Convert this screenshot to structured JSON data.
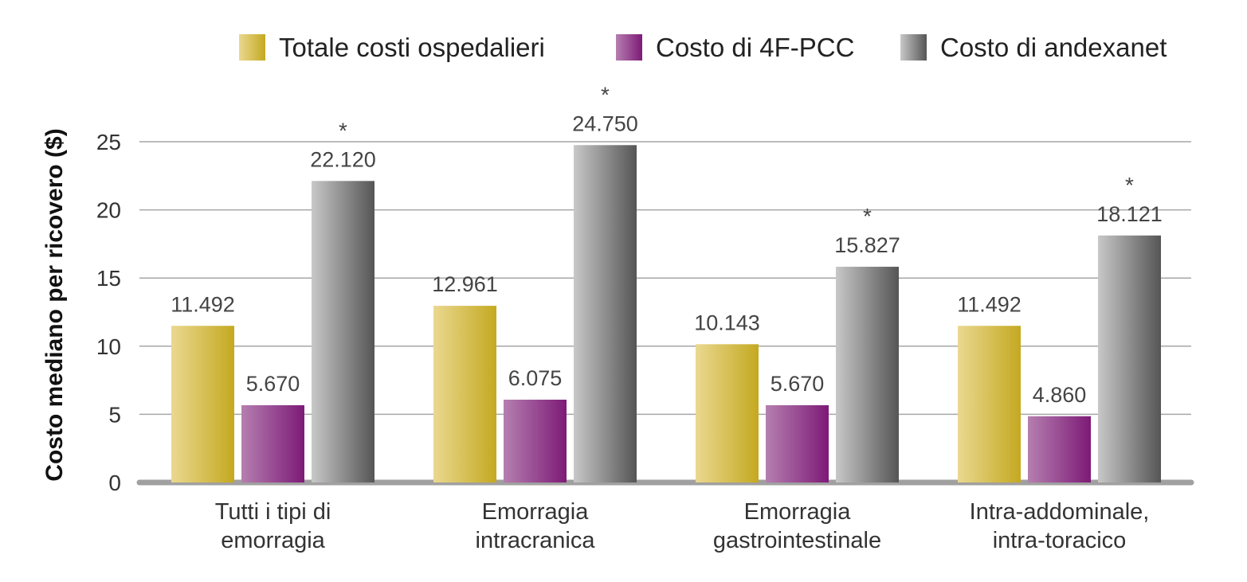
{
  "chart_data": {
    "type": "bar",
    "ylabel": "Costo mediano per ricovero ($)",
    "ylim": [
      0,
      25
    ],
    "yticks": [
      0,
      5,
      10,
      15,
      20,
      25
    ],
    "grid": true,
    "legend_position": "top-right",
    "categories": [
      [
        "Tutti i tipi di",
        "emorragia"
      ],
      [
        "Emorragia",
        "intracranica"
      ],
      [
        "Emorragia",
        "gastrointestinale"
      ],
      [
        "Intra-addominale,",
        "intra-toracico"
      ]
    ],
    "series": [
      {
        "name": "Totale costi ospedalieri",
        "color": "#c9b23a",
        "values": [
          11.492,
          12.961,
          10.143,
          11.492
        ],
        "labels": [
          "11.492",
          "12.961",
          "10.143",
          "11.492"
        ],
        "marked": [
          false,
          false,
          false,
          false
        ]
      },
      {
        "name": "Costo di 4F-PCC",
        "color": "#8e2a86",
        "values": [
          5.67,
          6.075,
          5.67,
          4.86
        ],
        "labels": [
          "5.670",
          "6.075",
          "5.670",
          "4.860"
        ],
        "marked": [
          false,
          false,
          false,
          false
        ]
      },
      {
        "name": "Costo di andexanet",
        "color": "#777777",
        "values": [
          22.12,
          24.75,
          15.827,
          18.121
        ],
        "labels": [
          "22.120",
          "24.750",
          "15.827",
          "18.121"
        ],
        "marked": [
          true,
          true,
          true,
          true
        ]
      }
    ],
    "marker_symbol": "*"
  }
}
